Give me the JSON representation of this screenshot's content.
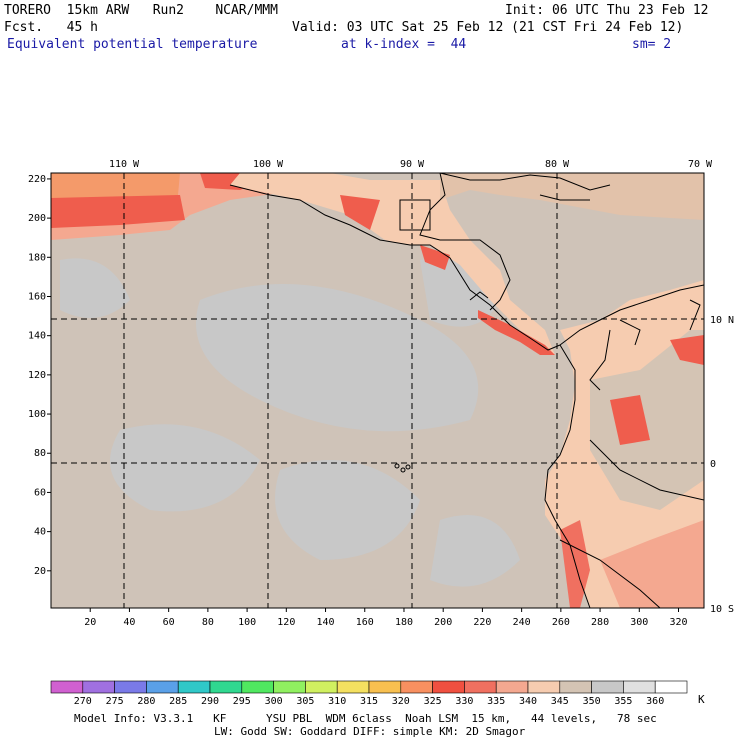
{
  "header": {
    "line1_left": "TORERO  15km ARW   Run2    NCAR/MMM",
    "line1_right": "Init: 06 UTC Thu 23 Feb 12",
    "line2_left": "Fcst.   45 h",
    "line2_right": "Valid: 03 UTC Sat 25 Feb 12 (21 CST Fri 24 Feb 12)",
    "line3_left": "Equivalent potential temperature",
    "line3_mid": "at k-index =  44",
    "line3_right": "sm= 2"
  },
  "map": {
    "top_lon_labels": [
      "110 W",
      "100 W",
      "90 W",
      "80 W",
      "70 W"
    ],
    "right_lat_labels": [
      "10 N",
      "0",
      "10 S"
    ],
    "left_y_ticks": [
      "220",
      "200",
      "180",
      "160",
      "140",
      "120",
      "100",
      "80",
      "60",
      "40",
      "20"
    ],
    "bottom_x_ticks": [
      "20",
      "40",
      "60",
      "80",
      "100",
      "120",
      "140",
      "160",
      "180",
      "200",
      "220",
      "240",
      "260",
      "280",
      "300",
      "320"
    ],
    "colors": {
      "ocean": "#cfc3b8",
      "ocean_gray": "#c8c8c8",
      "land_warm": "#f6c8a8",
      "land_hot": "#f49a82",
      "hot": "#ef5d4d",
      "coast": "#000000"
    }
  },
  "colorbar": {
    "labels": [
      "270",
      "275",
      "280",
      "285",
      "290",
      "295",
      "300",
      "305",
      "310",
      "315",
      "320",
      "325",
      "330",
      "335",
      "340",
      "345",
      "350",
      "355",
      "360"
    ],
    "unit": "K",
    "colors": [
      "#d060d0",
      "#a070e0",
      "#7a7ae8",
      "#5aa0e8",
      "#30c8c8",
      "#30d890",
      "#50e860",
      "#90f060",
      "#d0f060",
      "#f4e060",
      "#f8c050",
      "#f89060",
      "#f05040",
      "#f07060",
      "#f4a890",
      "#f6ccb0",
      "#d4c4b4",
      "#c8c8c8",
      "#e0e0e0",
      "#ffffff"
    ]
  },
  "footer": {
    "line1": "Model Info: V3.3.1   KF      YSU PBL  WDM 6class  Noah LSM  15 km,   44 levels,   78 sec",
    "line2": "LW: Godd SW: Goddard DIFF: simple KM: 2D Smagor"
  }
}
